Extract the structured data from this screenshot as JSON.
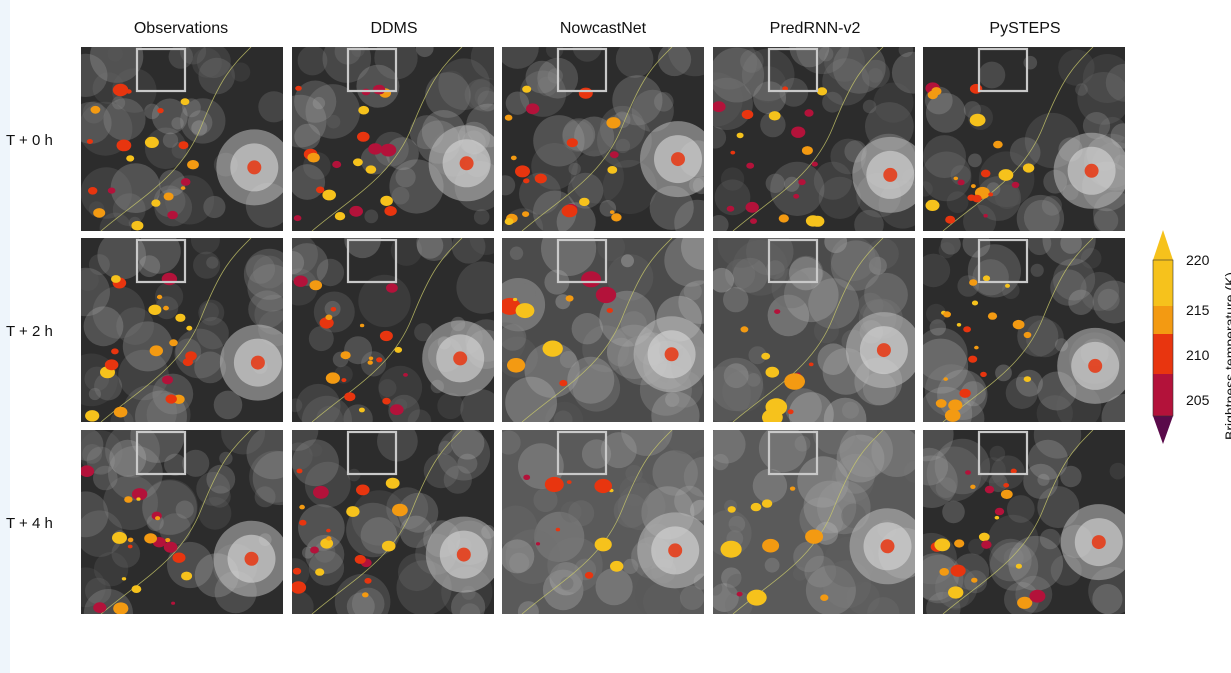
{
  "columns": [
    "Observations",
    "DDMS",
    "NowcastNet",
    "PredRNN-v2",
    "PySTEPS"
  ],
  "rows": [
    "T + 0 h",
    "T + 2 h",
    "T + 4 h"
  ],
  "colorbar": {
    "label": "Brightness temperature (K)",
    "ticks": [
      "220",
      "215",
      "210",
      "205"
    ],
    "colors": [
      "#f6c21c",
      "#f39a12",
      "#e8350f",
      "#b3123a",
      "#5a0a4a"
    ]
  }
}
